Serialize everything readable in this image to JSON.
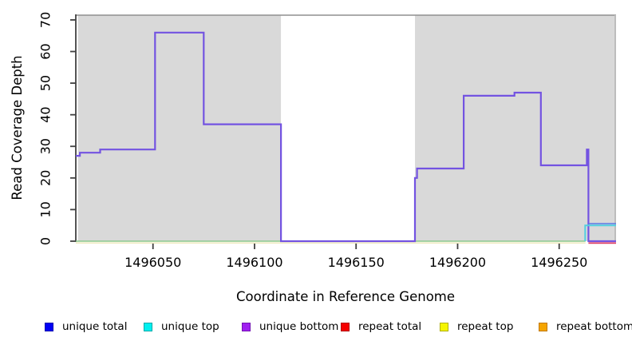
{
  "chart_data": {
    "type": "line",
    "subtype": "step-coverage",
    "title": "",
    "xlabel": "Coordinate in Reference Genome",
    "ylabel": "Read Coverage Depth",
    "xlim": [
      1496012,
      1496278
    ],
    "ylim": [
      0,
      71.5
    ],
    "x_ticks": [
      1496050,
      1496100,
      1496150,
      1496200,
      1496250
    ],
    "y_ticks": [
      0,
      10,
      20,
      30,
      40,
      50,
      60,
      70
    ],
    "grid": false,
    "legend_position": "bottom",
    "axis_color": "#404040",
    "frame_top_color": "#8f8f8f",
    "right_edge_color": "#bdbdbd",
    "shaded_color": "#d9d9d9",
    "shaded_regions": [
      {
        "from": 1496013,
        "to": 1496113
      },
      {
        "from": 1496179,
        "to": 1496278
      }
    ],
    "series": [
      {
        "name": "repeat top (0 across plot, drawn just below baseline)",
        "color": "#e9e2a6",
        "width": 1.2,
        "points": [
          [
            1496012,
            -0.55
          ],
          [
            1496263,
            -0.55
          ]
        ]
      },
      {
        "name": "unique top at 0 (cyan blended over yellow reads as green)",
        "color": "#8bc88b",
        "width": 1.6,
        "points": [
          [
            1496012,
            0
          ],
          [
            1496263,
            0
          ]
        ]
      },
      {
        "name": "unique total / unique bottom (overlapping step line)",
        "color": "#7353e1",
        "width": 2.2,
        "points": [
          [
            1496012,
            27
          ],
          [
            1496014,
            27
          ],
          [
            1496014,
            28
          ],
          [
            1496024,
            28
          ],
          [
            1496024,
            29
          ],
          [
            1496051,
            29
          ],
          [
            1496051,
            66
          ],
          [
            1496075,
            66
          ],
          [
            1496075,
            37
          ],
          [
            1496113,
            37
          ],
          [
            1496113,
            0
          ],
          [
            1496179,
            0
          ],
          [
            1496179,
            20
          ],
          [
            1496180,
            20
          ],
          [
            1496180,
            23
          ],
          [
            1496203,
            23
          ],
          [
            1496203,
            46
          ],
          [
            1496228,
            46
          ],
          [
            1496228,
            47
          ],
          [
            1496241,
            47
          ],
          [
            1496241,
            24
          ],
          [
            1496263.6,
            24
          ],
          [
            1496263.6,
            29
          ],
          [
            1496264.4,
            29
          ],
          [
            1496264.4,
            0
          ],
          [
            1496278,
            0
          ]
        ]
      },
      {
        "name": "unique top rises to 5 at right end",
        "color": "#52cfe0",
        "width": 2,
        "points": [
          [
            1496262.8,
            0
          ],
          [
            1496262.8,
            5
          ],
          [
            1496278,
            5
          ]
        ]
      },
      {
        "name": "unique total at 5 over cyan at right end",
        "color": "#5b79e6",
        "width": 1.6,
        "points": [
          [
            1496264.4,
            5.55
          ],
          [
            1496278,
            5.55
          ]
        ]
      },
      {
        "name": "repeat total at 0 at right end",
        "color": "#dc3a60",
        "width": 1.8,
        "points": [
          [
            1496264.4,
            -0.6
          ],
          [
            1496278,
            -0.6
          ]
        ]
      }
    ],
    "legend": [
      {
        "label": "unique total",
        "fill": "#0000f5",
        "border": "#0000b0"
      },
      {
        "label": "unique top",
        "fill": "#00f0f0",
        "border": "#00a8a8"
      },
      {
        "label": "unique bottom",
        "fill": "#a020f0",
        "border": "#7414b4"
      },
      {
        "label": "repeat total",
        "fill": "#f50000",
        "border": "#b00000"
      },
      {
        "label": "repeat top",
        "fill": "#f5f500",
        "border": "#b0b000"
      },
      {
        "label": "repeat bottom",
        "fill": "#f5a500",
        "border": "#c07800"
      }
    ]
  }
}
